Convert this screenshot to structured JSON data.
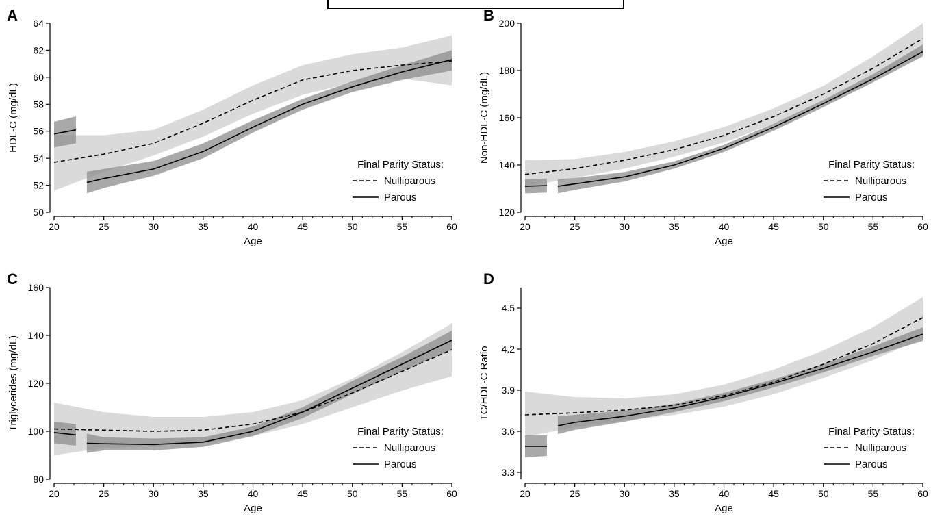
{
  "legend_title": "Final Parity Status:",
  "legend_items": [
    "Nulliparous",
    "Parous"
  ],
  "colors": {
    "nulliparous_band": "#d4d4d4",
    "parous_band": "#8c8c8c",
    "line": "#000000"
  },
  "chart_data": [
    {
      "panel": "A",
      "type": "line",
      "xlabel": "Age",
      "ylabel": "HDL-C (mg/dL)",
      "xlim": [
        20,
        60
      ],
      "ylim": [
        50,
        64
      ],
      "xticks": [
        20,
        25,
        30,
        35,
        40,
        45,
        50,
        55,
        60
      ],
      "yticks": [
        50,
        52,
        54,
        56,
        58,
        60,
        62,
        64
      ],
      "legend": "bottom-right",
      "series": [
        {
          "name": "Nulliparous",
          "style": "dashed",
          "segments": [
            {
              "x": [
                20,
                25,
                30,
                35,
                40,
                45,
                50,
                55,
                60
              ],
              "y": [
                53.7,
                54.3,
                55.1,
                56.6,
                58.3,
                59.8,
                60.5,
                60.9,
                61.2
              ],
              "lower": [
                51.6,
                53.0,
                54.2,
                55.6,
                57.3,
                58.7,
                59.6,
                59.9,
                59.4
              ],
              "upper": [
                55.7,
                55.7,
                56.1,
                57.6,
                59.4,
                60.9,
                61.7,
                62.2,
                63.1
              ]
            }
          ]
        },
        {
          "name": "Parous",
          "style": "solid",
          "segments": [
            {
              "x": [
                20,
                22.2
              ],
              "y": [
                55.8,
                56.1
              ],
              "lower": [
                54.8,
                55.1
              ],
              "upper": [
                56.7,
                57.1
              ]
            },
            {
              "x": [
                23.3,
                25,
                30,
                35,
                40,
                45,
                50,
                55,
                60
              ],
              "y": [
                52.2,
                52.5,
                53.2,
                54.5,
                56.3,
                58.0,
                59.3,
                60.4,
                61.3
              ],
              "lower": [
                51.4,
                51.8,
                52.7,
                54.0,
                55.9,
                57.6,
                58.9,
                59.8,
                60.5
              ],
              "upper": [
                53.0,
                53.2,
                53.8,
                55.1,
                56.8,
                58.4,
                59.7,
                60.9,
                62.0
              ]
            }
          ]
        }
      ]
    },
    {
      "panel": "B",
      "type": "line",
      "xlabel": "Age",
      "ylabel": "Non-HDL-C (mg/dL)",
      "xlim": [
        20,
        60
      ],
      "ylim": [
        120,
        200
      ],
      "xticks": [
        20,
        25,
        30,
        35,
        40,
        45,
        50,
        55,
        60
      ],
      "yticks": [
        120,
        140,
        160,
        180,
        200
      ],
      "legend": "bottom-right",
      "series": [
        {
          "name": "Nulliparous",
          "style": "dashed",
          "segments": [
            {
              "x": [
                20,
                25,
                30,
                35,
                40,
                45,
                50,
                55,
                60
              ],
              "y": [
                136,
                138.5,
                142,
                146.5,
                152.5,
                160.5,
                170,
                181,
                193.5
              ],
              "lower": [
                131,
                134.5,
                138.5,
                143.5,
                149.5,
                157.5,
                166.5,
                176.5,
                187.5
              ],
              "upper": [
                142,
                142.5,
                145.5,
                150,
                156,
                164,
                173.5,
                186,
                200
              ]
            }
          ]
        },
        {
          "name": "Parous",
          "style": "solid",
          "segments": [
            {
              "x": [
                20,
                22.2
              ],
              "y": [
                131,
                131.3
              ],
              "lower": [
                128,
                128.3
              ],
              "upper": [
                134,
                134.3
              ]
            },
            {
              "x": [
                23.3,
                25,
                30,
                35,
                40,
                45,
                50,
                55,
                60
              ],
              "y": [
                131,
                132,
                135,
                140,
                147,
                156,
                166,
                176.5,
                188
              ],
              "lower": [
                128,
                129.5,
                133,
                138.5,
                145.5,
                154.5,
                164.5,
                175,
                186
              ],
              "upper": [
                134,
                134.5,
                137,
                141.5,
                148.5,
                157.5,
                167.5,
                178.5,
                191
              ]
            }
          ]
        }
      ]
    },
    {
      "panel": "C",
      "type": "line",
      "xlabel": "Age",
      "ylabel": "Triglycerides (mg/dL)",
      "xlim": [
        20,
        60
      ],
      "ylim": [
        80,
        160
      ],
      "xticks": [
        20,
        25,
        30,
        35,
        40,
        45,
        50,
        55,
        60
      ],
      "yticks": [
        80,
        100,
        120,
        140,
        160
      ],
      "legend": "bottom-right",
      "series": [
        {
          "name": "Nulliparous",
          "style": "dashed",
          "segments": [
            {
              "x": [
                20,
                25,
                30,
                35,
                40,
                45,
                50,
                55,
                60
              ],
              "y": [
                101,
                100.5,
                100,
                100.5,
                103,
                108,
                116,
                125,
                134
              ],
              "lower": [
                90,
                93,
                94,
                95,
                98,
                103,
                110,
                117,
                123
              ],
              "upper": [
                112,
                108,
                106,
                106,
                108,
                113,
                122,
                133,
                145
              ]
            }
          ]
        },
        {
          "name": "Parous",
          "style": "solid",
          "segments": [
            {
              "x": [
                20,
                22.2
              ],
              "y": [
                99.5,
                98.5
              ],
              "lower": [
                95,
                94
              ],
              "upper": [
                104,
                103
              ]
            },
            {
              "x": [
                23.3,
                25,
                30,
                35,
                40,
                45,
                50,
                55,
                60
              ],
              "y": [
                95,
                94.8,
                94.5,
                95.5,
                100,
                108,
                118,
                128,
                138
              ],
              "lower": [
                91,
                92,
                92,
                93.5,
                98,
                105.5,
                115.5,
                125,
                134
              ],
              "upper": [
                99,
                97.5,
                97,
                97.5,
                102,
                110,
                121,
                131,
                142
              ]
            }
          ]
        }
      ]
    },
    {
      "panel": "D",
      "type": "line",
      "xlabel": "Age",
      "ylabel": "TC/HDL-C Ratio",
      "xlim": [
        20,
        60
      ],
      "ylim": [
        3.25,
        4.65
      ],
      "xticks": [
        20,
        25,
        30,
        35,
        40,
        45,
        50,
        55,
        60
      ],
      "yticks": [
        3.3,
        3.6,
        3.9,
        4.2,
        4.5
      ],
      "legend": "bottom-right",
      "series": [
        {
          "name": "Nulliparous",
          "style": "dashed",
          "segments": [
            {
              "x": [
                20,
                25,
                30,
                35,
                40,
                45,
                50,
                55,
                60
              ],
              "y": [
                3.72,
                3.735,
                3.755,
                3.79,
                3.86,
                3.96,
                4.09,
                4.24,
                4.43
              ],
              "lower": [
                3.56,
                3.63,
                3.68,
                3.72,
                3.78,
                3.87,
                3.99,
                4.12,
                4.28
              ],
              "upper": [
                3.89,
                3.85,
                3.84,
                3.87,
                3.94,
                4.05,
                4.19,
                4.36,
                4.58
              ]
            }
          ]
        },
        {
          "name": "Parous",
          "style": "solid",
          "segments": [
            {
              "x": [
                20,
                22.2
              ],
              "y": [
                3.49,
                3.49
              ],
              "lower": [
                3.41,
                3.42
              ],
              "upper": [
                3.57,
                3.57
              ]
            },
            {
              "x": [
                23.3,
                25,
                30,
                35,
                40,
                45,
                50,
                55,
                60
              ],
              "y": [
                3.64,
                3.665,
                3.71,
                3.77,
                3.85,
                3.95,
                4.06,
                4.18,
                4.31
              ],
              "lower": [
                3.58,
                3.61,
                3.67,
                3.74,
                3.82,
                3.92,
                4.03,
                4.15,
                4.26
              ],
              "upper": [
                3.71,
                3.72,
                3.75,
                3.8,
                3.88,
                3.98,
                4.09,
                4.22,
                4.36
              ]
            }
          ]
        }
      ]
    }
  ]
}
